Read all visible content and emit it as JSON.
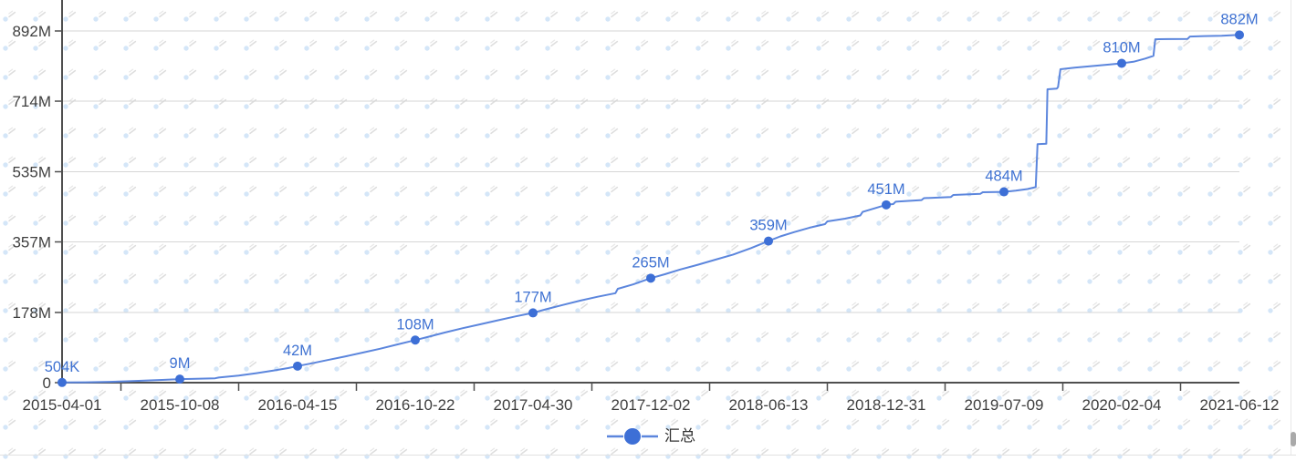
{
  "legend": {
    "label": "汇总"
  },
  "colors": {
    "line": "#5c86dd",
    "marker": "#3d6fd6",
    "data_label": "#3f72d2",
    "axis": "#4f4f4f",
    "grid": "#d6d6d6",
    "axis_label": "#3f3f3f",
    "watermark_dot": "#d4e6f8",
    "watermark_streak": "#dedede",
    "page_border": "#e2e2e2"
  },
  "chart_data": {
    "type": "line",
    "title": "",
    "series_name": "汇总",
    "legend_position": "bottom",
    "grid": "horizontal-only",
    "categories": [
      "2015-04-01",
      "2015-10-08",
      "2016-04-15",
      "2016-10-22",
      "2017-04-30",
      "2017-12-02",
      "2018-06-13",
      "2018-12-31",
      "2019-07-09",
      "2020-02-04",
      "2021-06-12"
    ],
    "values": [
      0.504,
      9,
      42,
      108,
      177,
      265,
      359,
      451,
      484,
      810,
      882
    ],
    "value_unit": "M",
    "point_labels": [
      "504K",
      "9M",
      "42M",
      "108M",
      "177M",
      "265M",
      "359M",
      "451M",
      "484M",
      "810M",
      "882M"
    ],
    "y_axis": {
      "ticks": [
        {
          "label": "0",
          "value": 0
        },
        {
          "label": "178M",
          "value": 178
        },
        {
          "label": "357M",
          "value": 357
        },
        {
          "label": "535M",
          "value": 535
        },
        {
          "label": "714M",
          "value": 714
        },
        {
          "label": "892M",
          "value": 892
        }
      ],
      "ylim": [
        0,
        892
      ]
    },
    "estimated_curve": [
      [
        0,
        0.5
      ],
      [
        0.2,
        1
      ],
      [
        0.4,
        2
      ],
      [
        0.55,
        3.5
      ],
      [
        0.7,
        5
      ],
      [
        0.85,
        7
      ],
      [
        1,
        9
      ],
      [
        1.1,
        9.5
      ],
      [
        1.3,
        11
      ],
      [
        1.33,
        13
      ],
      [
        1.5,
        18
      ],
      [
        1.65,
        24
      ],
      [
        1.8,
        31
      ],
      [
        1.92,
        37
      ],
      [
        2,
        42
      ],
      [
        2.12,
        49
      ],
      [
        2.25,
        57
      ],
      [
        2.4,
        66
      ],
      [
        2.55,
        76
      ],
      [
        2.7,
        86
      ],
      [
        2.85,
        97
      ],
      [
        3,
        108
      ],
      [
        3.12,
        117
      ],
      [
        3.25,
        127
      ],
      [
        3.4,
        138
      ],
      [
        3.55,
        148
      ],
      [
        3.7,
        158
      ],
      [
        3.85,
        168
      ],
      [
        4,
        177
      ],
      [
        4.12,
        187
      ],
      [
        4.25,
        197
      ],
      [
        4.4,
        208
      ],
      [
        4.55,
        218
      ],
      [
        4.7,
        227
      ],
      [
        4.72,
        238
      ],
      [
        4.85,
        249
      ],
      [
        5,
        265
      ],
      [
        5.12,
        275
      ],
      [
        5.25,
        287
      ],
      [
        5.4,
        299
      ],
      [
        5.55,
        312
      ],
      [
        5.7,
        325
      ],
      [
        5.85,
        341
      ],
      [
        6,
        359
      ],
      [
        6.1,
        371
      ],
      [
        6.22,
        382
      ],
      [
        6.35,
        393
      ],
      [
        6.48,
        402
      ],
      [
        6.5,
        409
      ],
      [
        6.65,
        416
      ],
      [
        6.78,
        424
      ],
      [
        6.8,
        433
      ],
      [
        6.92,
        444
      ],
      [
        7,
        451
      ],
      [
        7.06,
        453
      ],
      [
        7.08,
        459
      ],
      [
        7.3,
        463
      ],
      [
        7.32,
        468
      ],
      [
        7.55,
        471
      ],
      [
        7.57,
        476
      ],
      [
        7.8,
        479
      ],
      [
        7.82,
        483
      ],
      [
        8,
        484
      ],
      [
        8.1,
        487
      ],
      [
        8.2,
        491
      ],
      [
        8.27,
        496
      ],
      [
        8.285,
        605
      ],
      [
        8.36,
        606
      ],
      [
        8.37,
        744
      ],
      [
        8.45,
        746
      ],
      [
        8.46,
        750
      ],
      [
        8.48,
        795
      ],
      [
        8.6,
        799
      ],
      [
        8.75,
        803
      ],
      [
        8.9,
        807
      ],
      [
        9,
        810
      ],
      [
        9.1,
        814
      ],
      [
        9.2,
        822
      ],
      [
        9.27,
        829
      ],
      [
        9.285,
        871
      ],
      [
        9.4,
        871.5
      ],
      [
        9.56,
        872
      ],
      [
        9.58,
        878
      ],
      [
        9.7,
        879
      ],
      [
        9.85,
        880
      ],
      [
        10,
        882
      ]
    ]
  }
}
